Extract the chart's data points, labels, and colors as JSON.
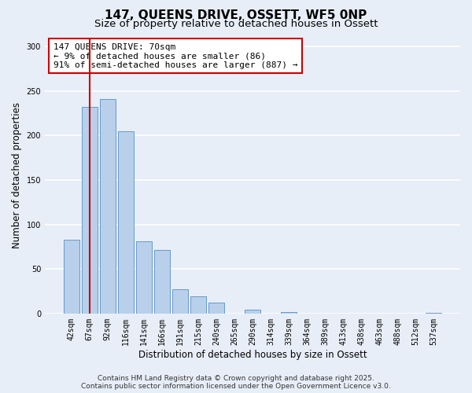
{
  "title": "147, QUEENS DRIVE, OSSETT, WF5 0NP",
  "subtitle": "Size of property relative to detached houses in Ossett",
  "xlabel": "Distribution of detached houses by size in Ossett",
  "ylabel": "Number of detached properties",
  "bar_labels": [
    "42sqm",
    "67sqm",
    "92sqm",
    "116sqm",
    "141sqm",
    "166sqm",
    "191sqm",
    "215sqm",
    "240sqm",
    "265sqm",
    "290sqm",
    "314sqm",
    "339sqm",
    "364sqm",
    "389sqm",
    "413sqm",
    "438sqm",
    "463sqm",
    "488sqm",
    "512sqm",
    "537sqm"
  ],
  "bar_values": [
    83,
    232,
    241,
    205,
    81,
    71,
    27,
    19,
    12,
    0,
    4,
    0,
    2,
    0,
    0,
    0,
    0,
    0,
    0,
    0,
    1
  ],
  "bar_color": "#b8d0ea",
  "bar_edge_color": "#6699cc",
  "vline_x": 1,
  "vline_color": "#cc0000",
  "annotation_text": "147 QUEENS DRIVE: 70sqm\n← 9% of detached houses are smaller (86)\n91% of semi-detached houses are larger (887) →",
  "annotation_box_facecolor": "#ffffff",
  "annotation_box_edgecolor": "#cc0000",
  "ylim": [
    0,
    310
  ],
  "yticks": [
    0,
    50,
    100,
    150,
    200,
    250,
    300
  ],
  "footer_line1": "Contains HM Land Registry data © Crown copyright and database right 2025.",
  "footer_line2": "Contains public sector information licensed under the Open Government Licence v3.0.",
  "bg_color": "#e8eef8",
  "plot_bg_color": "#e8eef8",
  "grid_color": "#ffffff",
  "title_fontsize": 11,
  "subtitle_fontsize": 9.5,
  "tick_fontsize": 7,
  "label_fontsize": 8.5,
  "footer_fontsize": 6.5,
  "annotation_fontsize": 8
}
